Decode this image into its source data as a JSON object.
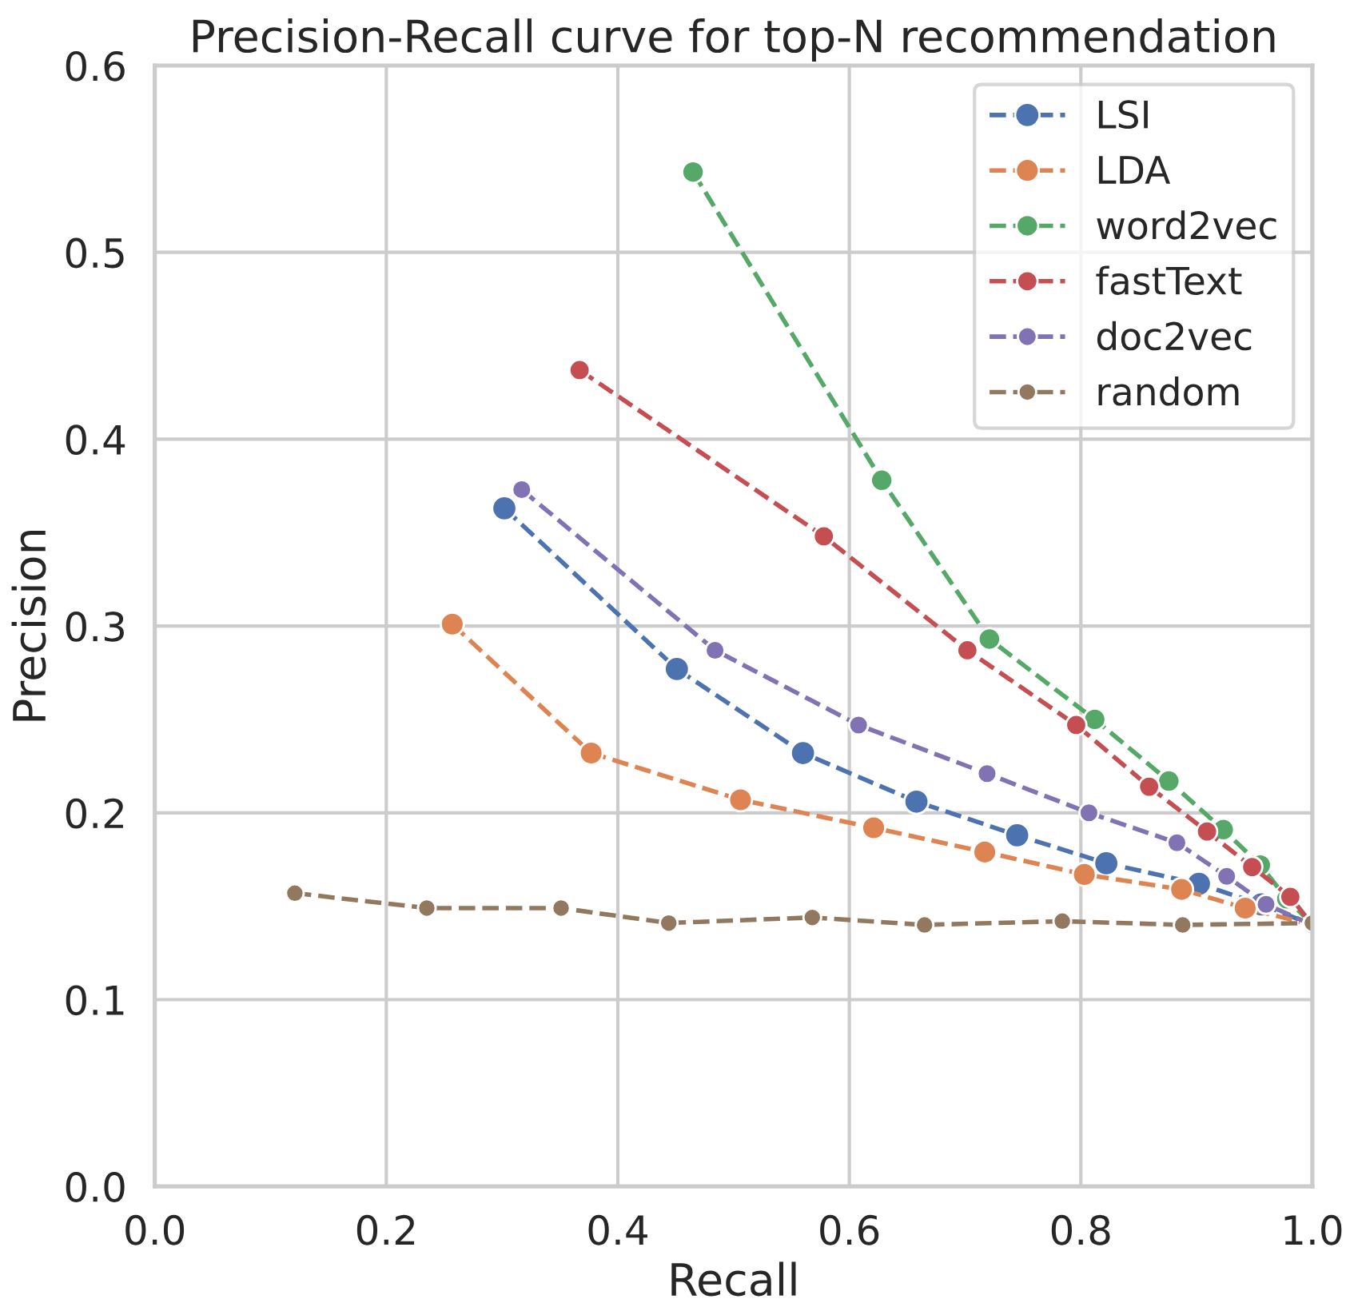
{
  "chart_data": {
    "type": "line",
    "title": "Precision-Recall curve for top-N recommendation",
    "xlabel": "Recall",
    "ylabel": "Precision",
    "xlim": [
      0.0,
      1.0
    ],
    "ylim": [
      0.0,
      0.6
    ],
    "xticks": [
      {
        "value": 0.0,
        "label": "0.0"
      },
      0.2,
      0.4,
      0.6,
      0.8,
      {
        "value": 1.0,
        "label": "1.0"
      }
    ],
    "yticks": [
      {
        "value": 0.0,
        "label": "0.0"
      },
      0.1,
      0.2,
      0.3,
      0.4,
      0.5,
      0.6
    ],
    "grid": true,
    "legend": "top right",
    "marker": "circle",
    "line_style": "dashed",
    "series": [
      {
        "name": "LSI",
        "color": "#4c72b0",
        "x": [
          0.302,
          0.451,
          0.56,
          0.658,
          0.745,
          0.822,
          0.902,
          0.956,
          1.0
        ],
        "values": [
          0.363,
          0.277,
          0.232,
          0.206,
          0.188,
          0.173,
          0.162,
          0.151,
          0.14
        ]
      },
      {
        "name": "LDA",
        "color": "#dd8452",
        "x": [
          0.257,
          0.377,
          0.506,
          0.621,
          0.717,
          0.803,
          0.887,
          0.942,
          1.0
        ],
        "values": [
          0.301,
          0.232,
          0.207,
          0.192,
          0.179,
          0.167,
          0.159,
          0.149,
          0.14
        ]
      },
      {
        "name": "word2vec",
        "color": "#55a868",
        "x": [
          0.465,
          0.628,
          0.721,
          0.812,
          0.876,
          0.923,
          0.955,
          0.978,
          1.0
        ],
        "values": [
          0.543,
          0.378,
          0.293,
          0.25,
          0.217,
          0.191,
          0.172,
          0.154,
          0.14
        ]
      },
      {
        "name": "fastText",
        "color": "#c44e52",
        "x": [
          0.367,
          0.578,
          0.702,
          0.796,
          0.859,
          0.909,
          0.948,
          0.981,
          1.0
        ],
        "values": [
          0.437,
          0.348,
          0.287,
          0.247,
          0.214,
          0.19,
          0.171,
          0.155,
          0.14
        ]
      },
      {
        "name": "doc2vec",
        "color": "#8172b3",
        "x": [
          0.317,
          0.484,
          0.608,
          0.719,
          0.807,
          0.883,
          0.926,
          0.96,
          1.0
        ],
        "values": [
          0.373,
          0.287,
          0.247,
          0.221,
          0.2,
          0.184,
          0.166,
          0.151,
          0.14
        ]
      },
      {
        "name": "random",
        "color": "#937860",
        "x": [
          0.121,
          0.235,
          0.351,
          0.444,
          0.568,
          0.665,
          0.784,
          0.888,
          1.0
        ],
        "values": [
          0.157,
          0.149,
          0.149,
          0.141,
          0.144,
          0.14,
          0.142,
          0.14,
          0.141
        ]
      }
    ]
  }
}
